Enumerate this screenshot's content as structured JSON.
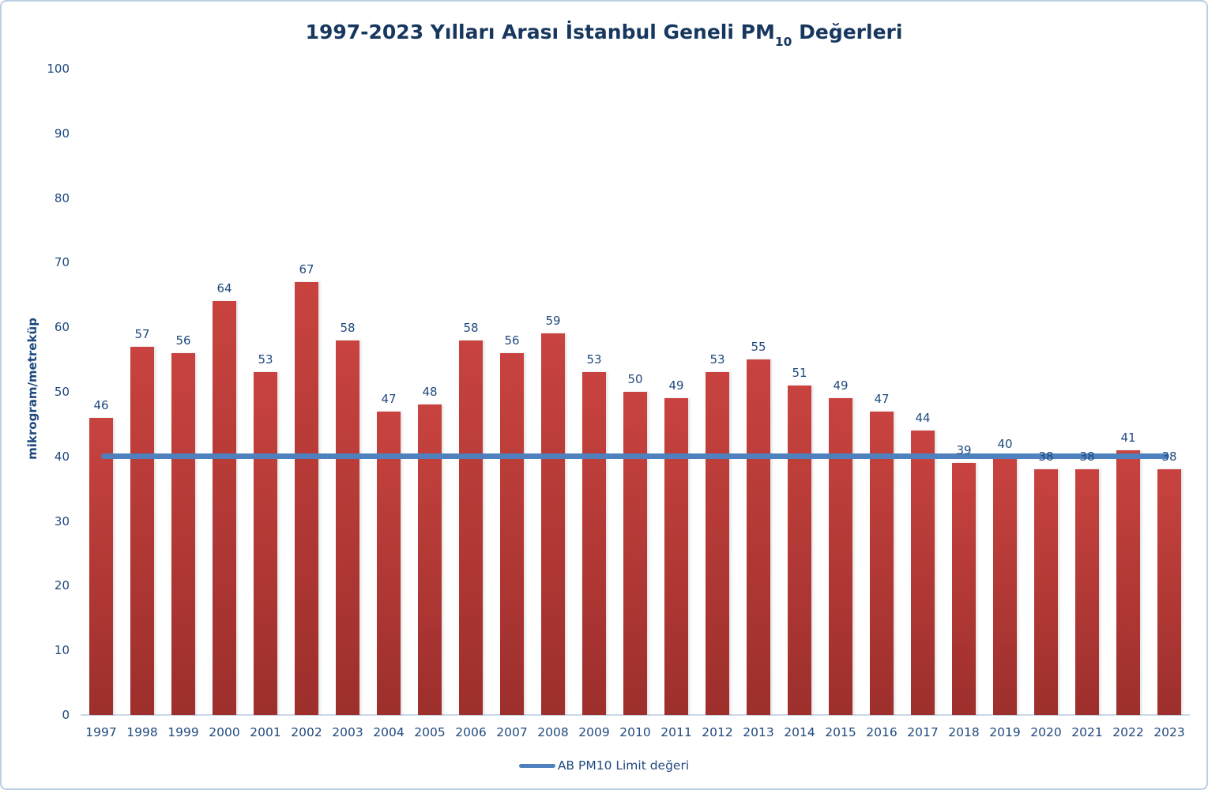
{
  "chart_data": {
    "type": "bar",
    "title": "1997-2023 Yılları Arası İstanbul Geneli PM10 Değerleri",
    "title_parts": {
      "prefix": "1997-2023 Yılları Arası İstanbul Geneli PM",
      "subscript": "10",
      "suffix": " Değerleri"
    },
    "categories": [
      "1997",
      "1998",
      "1999",
      "2000",
      "2001",
      "2002",
      "2003",
      "2004",
      "2005",
      "2006",
      "2007",
      "2008",
      "2009",
      "2010",
      "2011",
      "2012",
      "2013",
      "2014",
      "2015",
      "2016",
      "2017",
      "2018",
      "2019",
      "2020",
      "2021",
      "2022",
      "2023"
    ],
    "values": [
      46,
      57,
      56,
      64,
      53,
      67,
      58,
      47,
      48,
      58,
      56,
      59,
      53,
      50,
      49,
      53,
      55,
      51,
      49,
      47,
      44,
      39,
      40,
      38,
      38,
      41,
      38
    ],
    "xlabel": "",
    "ylabel": "mikrogram/metreküp",
    "ylim": [
      0,
      100
    ],
    "ytick_interval": 10,
    "grid": false,
    "limit_line": {
      "value": 40,
      "label": "AB PM10 Limit değeri"
    },
    "legend": {
      "position": "bottom-center",
      "entries": [
        {
          "label": "AB PM10 Limit değeri",
          "type": "line",
          "color": "#4E81BD"
        }
      ]
    },
    "colors": {
      "bar_top": "#C8433F",
      "bar_bottom": "#9D2F2C",
      "limit_line": "#4E81BD",
      "title_text": "#17375E",
      "axis_text": "#1F497D",
      "axis_line": "#C9D8EA",
      "chart_border": "#BCCFE4"
    }
  }
}
